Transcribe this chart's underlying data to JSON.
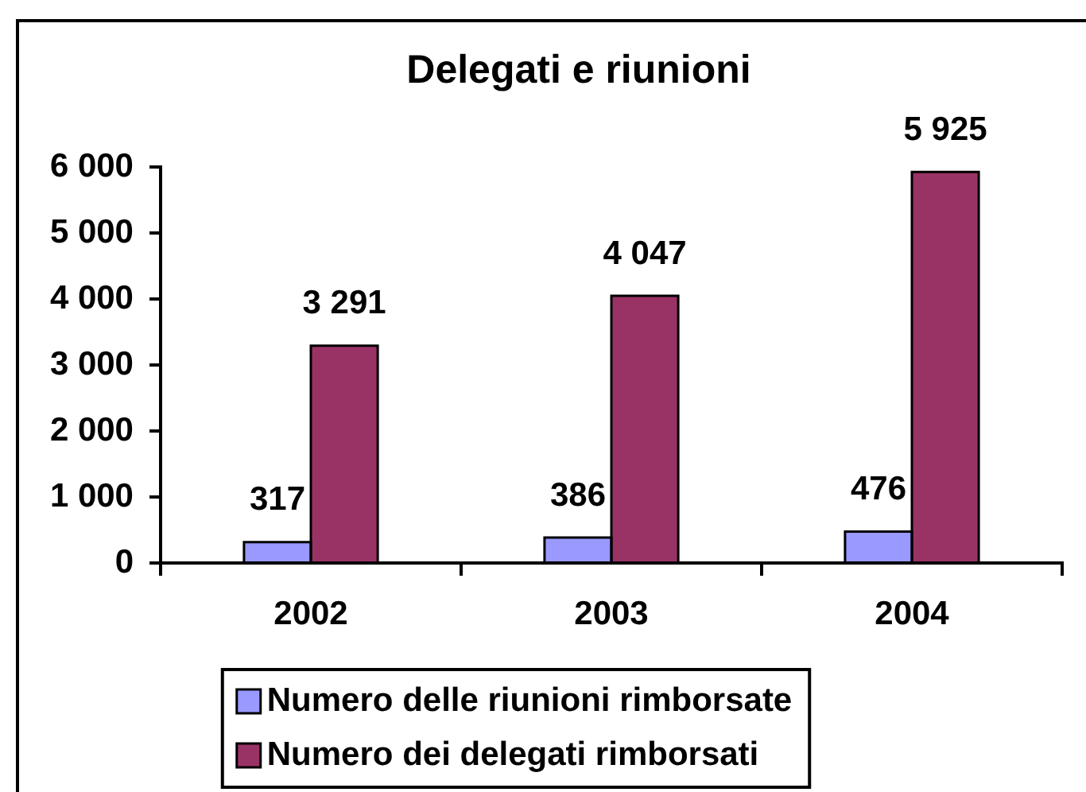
{
  "chart_data": {
    "type": "bar",
    "title": "Delegati e riunioni",
    "categories": [
      "2002",
      "2003",
      "2004"
    ],
    "series": [
      {
        "name": "Numero delle riunioni rimborsate",
        "color": "#9999ff",
        "values": [
          317,
          386,
          476
        ],
        "value_labels": [
          "317",
          "386",
          "476"
        ]
      },
      {
        "name": "Numero dei delegati rimborsati",
        "color": "#993366",
        "values": [
          3291,
          4047,
          5925
        ],
        "value_labels": [
          "3 291",
          "4 047",
          "5 925"
        ]
      }
    ],
    "ylim": [
      0,
      6000
    ],
    "yticks": [
      0,
      {
        "value": 1000,
        "label": "1 000"
      },
      {
        "value": 2000,
        "label": "2 000"
      },
      {
        "value": 3000,
        "label": "3 000"
      },
      {
        "value": 4000,
        "label": "4 000"
      },
      {
        "value": 5000,
        "label": "5 000"
      },
      {
        "value": 6000,
        "label": "6 000"
      }
    ],
    "grid": false,
    "legend": "bottom"
  }
}
